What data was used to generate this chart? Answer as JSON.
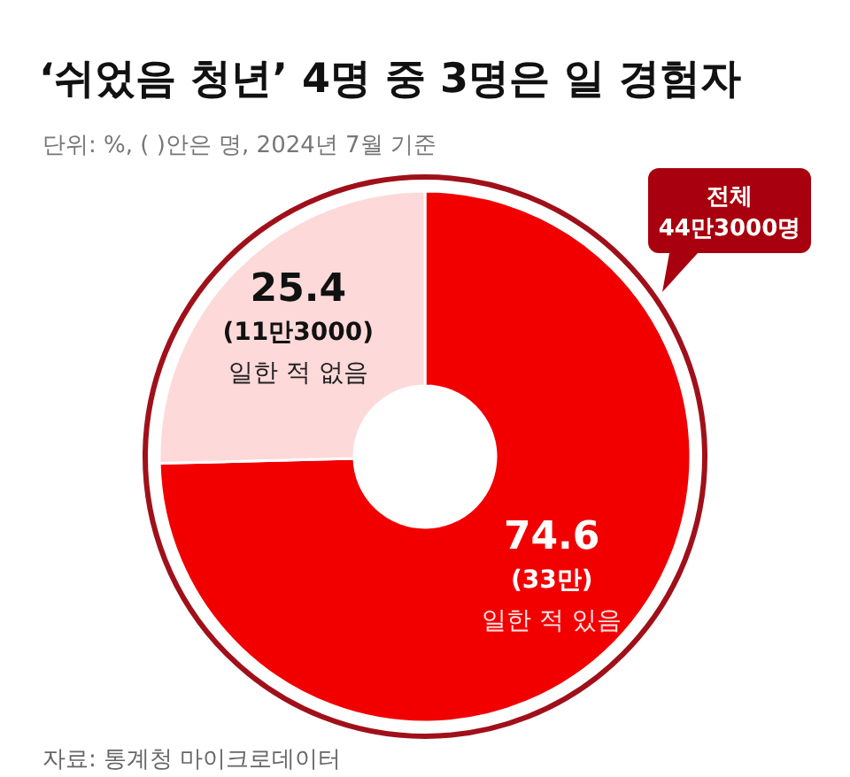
{
  "chart_data": {
    "type": "donut",
    "title": "‘쉬었음 청년’ 4명 중 3명은 일 경험자",
    "subtitle": "단위: %, ( )안은 명, 2024년 7월 기준",
    "categories": [
      "일한 적 있음",
      "일한 적 없음"
    ],
    "values": [
      74.6,
      25.4
    ],
    "colors": [
      "#f20000",
      "#fdd9d9"
    ],
    "data_labels": true,
    "annotations": [
      {
        "text": "(33만)",
        "x": "일한 적 있음"
      },
      {
        "text": "(11만3000)",
        "x": "일한 적 없음"
      },
      "전체 44만3000명",
      "자료: 통계청 마이크로데이터"
    ]
  }
}
